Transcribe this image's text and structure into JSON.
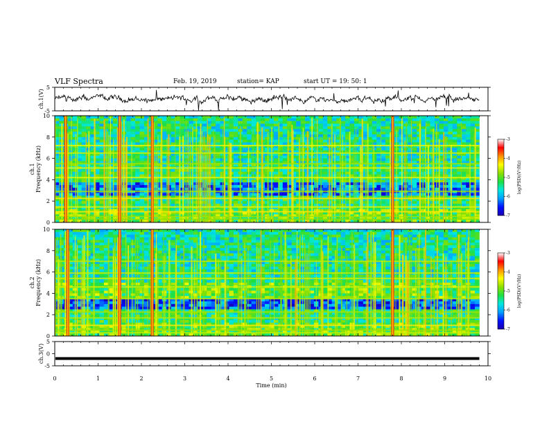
{
  "header": {
    "title": "VLF Spectra",
    "date": "Feb. 19, 2019",
    "station": "station= KAP",
    "start": "start  UT =   19: 50: 1"
  },
  "chart_data": [
    {
      "type": "line",
      "panel": "ch1-waveform",
      "ylabel": "ch.1(V)",
      "ylim": [
        -5,
        5
      ],
      "yticks": [
        "5",
        "-5"
      ],
      "xlim": [
        0,
        9.8
      ],
      "color": "#000000"
    },
    {
      "type": "heatmap",
      "panel": "ch1-spectrogram",
      "ylabel": "Frequency (kHz)",
      "channel_label": "ch.1",
      "ylim": [
        0,
        10
      ],
      "yticks": [
        "0",
        "2",
        "4",
        "6",
        "8",
        "10"
      ],
      "xlim": [
        0,
        9.8
      ],
      "colorbar": {
        "label": "log(PSD)(V²/Hz)",
        "range": [
          -7,
          -3
        ],
        "ticks": [
          "-3",
          "-4",
          "-5",
          "-6",
          "-7"
        ],
        "colormap": [
          "#1a00b0",
          "#0010ff",
          "#00a0ff",
          "#00e8e0",
          "#20e040",
          "#90e000",
          "#ffff00",
          "#ff9000",
          "#ff0000",
          "#ffffff"
        ]
      },
      "bright_bursts_min": [
        0.25,
        1.5,
        2.25,
        7.8
      ],
      "horizontal_lines_khz": [
        0.3,
        0.55,
        1.0,
        1.45,
        2.25,
        2.9,
        4.2,
        5.1,
        5.5,
        6.5,
        7.2
      ]
    },
    {
      "type": "heatmap",
      "panel": "ch2-spectrogram",
      "ylabel": "Frequency (kHz)",
      "channel_label": "ch.2",
      "ylim": [
        0,
        10
      ],
      "yticks": [
        "0",
        "2",
        "4",
        "6",
        "8",
        "10"
      ],
      "xlim": [
        0,
        9.8
      ],
      "colorbar": {
        "label": "log(PSD)(V²/Hz)",
        "range": [
          -7,
          -3
        ],
        "ticks": [
          "-3",
          "-4",
          "-5",
          "-6",
          "-7"
        ]
      },
      "bright_bursts_min": [
        0.3,
        1.5,
        2.25,
        7.8
      ],
      "horizontal_lines_khz": [
        0.3,
        0.55,
        1.0,
        1.7,
        2.25,
        3.5,
        4.6,
        5.4,
        5.9,
        7.0
      ]
    },
    {
      "type": "line",
      "panel": "ch3-waveform",
      "ylabel": "ch.3(V)",
      "ylim": [
        -5,
        5
      ],
      "yticks": [
        "5",
        "0",
        "-5"
      ],
      "xlim": [
        0,
        9.8
      ],
      "constant_value": -2,
      "color": "#000000"
    }
  ],
  "xaxis": {
    "label": "Time  (min)",
    "ticks": [
      "0",
      "1",
      "2",
      "3",
      "4",
      "5",
      "6",
      "7",
      "8",
      "9",
      "10"
    ],
    "range": [
      0,
      10
    ]
  }
}
